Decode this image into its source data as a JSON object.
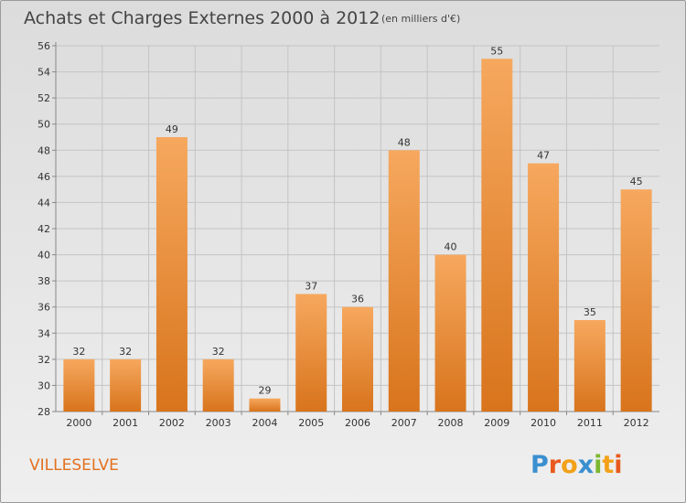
{
  "title": "Achats et Charges Externes 2000 à 2012",
  "unit_note": "(en milliers d'€)",
  "commune": "VILLESELVE",
  "logo": {
    "text": "Proxiti",
    "letters": [
      {
        "ch": "P",
        "color": "#3a8fd0"
      },
      {
        "ch": "r",
        "color": "#e85a1e"
      },
      {
        "ch": "o",
        "color": "#f2a118"
      },
      {
        "ch": "x",
        "color": "#3a8fd0"
      },
      {
        "ch": "i",
        "color": "#7cb82f"
      },
      {
        "ch": "t",
        "color": "#f2a118"
      },
      {
        "ch": "i",
        "color": "#e85a1e"
      }
    ]
  },
  "colors": {
    "bar_light": "#f6a85e",
    "bar_dark": "#d8741c",
    "grid": "#c4c4c4",
    "commune_text": "#e3701e"
  },
  "chart_data": {
    "type": "bar",
    "categories": [
      "2000",
      "2001",
      "2002",
      "2003",
      "2004",
      "2005",
      "2006",
      "2007",
      "2008",
      "2009",
      "2010",
      "2011",
      "2012"
    ],
    "values": [
      32,
      32,
      49,
      32,
      29,
      37,
      36,
      48,
      40,
      55,
      47,
      35,
      45
    ],
    "ylim": [
      28,
      56
    ],
    "yticks": [
      28,
      30,
      32,
      34,
      36,
      38,
      40,
      42,
      44,
      46,
      48,
      50,
      52,
      54,
      56
    ],
    "grid": true,
    "data_labels": true
  }
}
